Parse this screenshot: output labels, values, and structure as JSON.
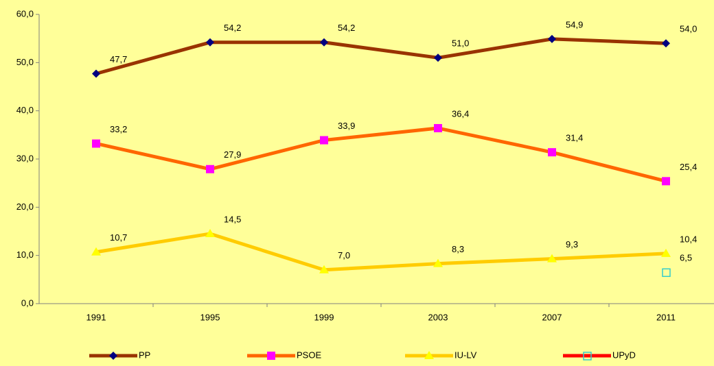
{
  "chart_data": {
    "type": "line",
    "categories": [
      "1991",
      "1995",
      "1999",
      "2003",
      "2007",
      "2011"
    ],
    "series": [
      {
        "name": "PP",
        "color": "#993300",
        "marker": "diamond",
        "marker_color": "#000080",
        "values": [
          47.7,
          54.2,
          54.2,
          51.0,
          54.9,
          54.0
        ],
        "value_labels": [
          "47,7",
          "54,2",
          "54,2",
          "51,0",
          "54,9",
          "54,0"
        ]
      },
      {
        "name": "PSOE",
        "color": "#ff6600",
        "marker": "square",
        "marker_color": "#ff00ff",
        "values": [
          33.2,
          27.9,
          33.9,
          36.4,
          31.4,
          25.4
        ],
        "value_labels": [
          "33,2",
          "27,9",
          "33,9",
          "36,4",
          "31,4",
          "25,4"
        ]
      },
      {
        "name": "IU-LV",
        "color": "#ffcc00",
        "marker": "triangle",
        "marker_color": "#ffff00",
        "values": [
          10.7,
          14.5,
          7.0,
          8.3,
          9.3,
          10.4
        ],
        "value_labels": [
          "10,7",
          "14,5",
          "7,0",
          "8,3",
          "9,3",
          "10,4"
        ]
      },
      {
        "name": "UPyD",
        "color": "#ff0000",
        "marker": "hollow-square",
        "marker_color": "#33cccc",
        "values": [
          null,
          null,
          null,
          null,
          null,
          6.5
        ],
        "value_labels": [
          null,
          null,
          null,
          null,
          null,
          "6,5"
        ]
      }
    ],
    "ylim": [
      0,
      60
    ],
    "yticks": [
      {
        "value": 0,
        "label": "0,0"
      },
      {
        "value": 10,
        "label": "10,0"
      },
      {
        "value": 20,
        "label": "20,0"
      },
      {
        "value": 30,
        "label": "30,0"
      },
      {
        "value": 40,
        "label": "40,0"
      },
      {
        "value": 50,
        "label": "50,0"
      },
      {
        "value": 60,
        "label": "60,0"
      }
    ],
    "grid": false,
    "legend": "bottom"
  }
}
